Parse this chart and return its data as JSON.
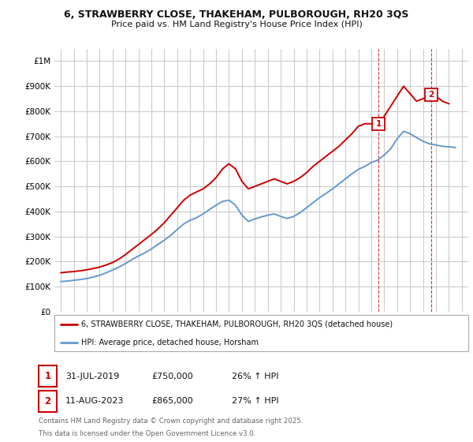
{
  "title1": "6, STRAWBERRY CLOSE, THAKEHAM, PULBOROUGH, RH20 3QS",
  "title2": "Price paid vs. HM Land Registry's House Price Index (HPI)",
  "legend1": "6, STRAWBERRY CLOSE, THAKEHAM, PULBOROUGH, RH20 3QS (detached house)",
  "legend2": "HPI: Average price, detached house, Horsham",
  "annotation1_label": "1",
  "annotation1_date": "31-JUL-2019",
  "annotation1_price": "£750,000",
  "annotation1_hpi": "26% ↑ HPI",
  "annotation2_label": "2",
  "annotation2_date": "11-AUG-2023",
  "annotation2_price": "£865,000",
  "annotation2_hpi": "27% ↑ HPI",
  "footnote1": "Contains HM Land Registry data © Crown copyright and database right 2025.",
  "footnote2": "This data is licensed under the Open Government Licence v3.0.",
  "red_color": "#cc0000",
  "blue_color": "#6699cc",
  "background_color": "#ffffff",
  "grid_color": "#cccccc",
  "xlim": [
    1994.5,
    2026.5
  ],
  "ylim": [
    0,
    1050000
  ],
  "point1_x": 2019.58,
  "point1_y": 750000,
  "point2_x": 2023.62,
  "point2_y": 865000,
  "red_x": [
    1995.0,
    1995.5,
    1996.0,
    1996.5,
    1997.0,
    1997.5,
    1998.0,
    1998.5,
    1999.0,
    1999.5,
    2000.0,
    2000.5,
    2001.0,
    2001.5,
    2002.0,
    2002.5,
    2003.0,
    2003.5,
    2004.0,
    2004.5,
    2005.0,
    2005.5,
    2006.0,
    2006.5,
    2007.0,
    2007.5,
    2008.0,
    2008.5,
    2009.0,
    2009.5,
    2010.0,
    2010.5,
    2011.0,
    2011.5,
    2012.0,
    2012.5,
    2013.0,
    2013.5,
    2014.0,
    2014.5,
    2015.0,
    2015.5,
    2016.0,
    2016.5,
    2017.0,
    2017.5,
    2018.0,
    2018.5,
    2019.0,
    2019.58,
    2020.0,
    2020.5,
    2021.0,
    2021.5,
    2022.0,
    2022.5,
    2023.0,
    2023.62,
    2024.0,
    2024.5,
    2025.0
  ],
  "red_y": [
    155000,
    158000,
    160000,
    163000,
    167000,
    172000,
    178000,
    186000,
    196000,
    210000,
    228000,
    248000,
    268000,
    288000,
    308000,
    330000,
    355000,
    385000,
    415000,
    445000,
    465000,
    478000,
    490000,
    510000,
    535000,
    570000,
    590000,
    570000,
    520000,
    490000,
    500000,
    510000,
    520000,
    530000,
    520000,
    510000,
    520000,
    535000,
    555000,
    580000,
    600000,
    620000,
    640000,
    660000,
    685000,
    710000,
    740000,
    750000,
    750000,
    750000,
    780000,
    820000,
    860000,
    900000,
    870000,
    840000,
    850000,
    865000,
    860000,
    840000,
    830000
  ],
  "blue_x": [
    1995.0,
    1995.5,
    1996.0,
    1996.5,
    1997.0,
    1997.5,
    1998.0,
    1998.5,
    1999.0,
    1999.5,
    2000.0,
    2000.5,
    2001.0,
    2001.5,
    2002.0,
    2002.5,
    2003.0,
    2003.5,
    2004.0,
    2004.5,
    2005.0,
    2005.5,
    2006.0,
    2006.5,
    2007.0,
    2007.5,
    2008.0,
    2008.5,
    2009.0,
    2009.5,
    2010.0,
    2010.5,
    2011.0,
    2011.5,
    2012.0,
    2012.5,
    2013.0,
    2013.5,
    2014.0,
    2014.5,
    2015.0,
    2015.5,
    2016.0,
    2016.5,
    2017.0,
    2017.5,
    2018.0,
    2018.5,
    2019.0,
    2019.5,
    2020.0,
    2020.5,
    2021.0,
    2021.5,
    2022.0,
    2022.5,
    2023.0,
    2023.5,
    2024.0,
    2024.5,
    2025.0,
    2025.5
  ],
  "blue_y": [
    120000,
    122000,
    125000,
    128000,
    132000,
    138000,
    145000,
    155000,
    166000,
    178000,
    192000,
    208000,
    222000,
    235000,
    250000,
    268000,
    285000,
    305000,
    328000,
    350000,
    365000,
    375000,
    390000,
    408000,
    425000,
    440000,
    445000,
    425000,
    385000,
    360000,
    370000,
    378000,
    385000,
    390000,
    380000,
    372000,
    380000,
    395000,
    415000,
    435000,
    455000,
    472000,
    490000,
    510000,
    530000,
    550000,
    568000,
    580000,
    595000,
    605000,
    625000,
    650000,
    690000,
    720000,
    710000,
    695000,
    680000,
    670000,
    665000,
    660000,
    658000,
    655000
  ]
}
